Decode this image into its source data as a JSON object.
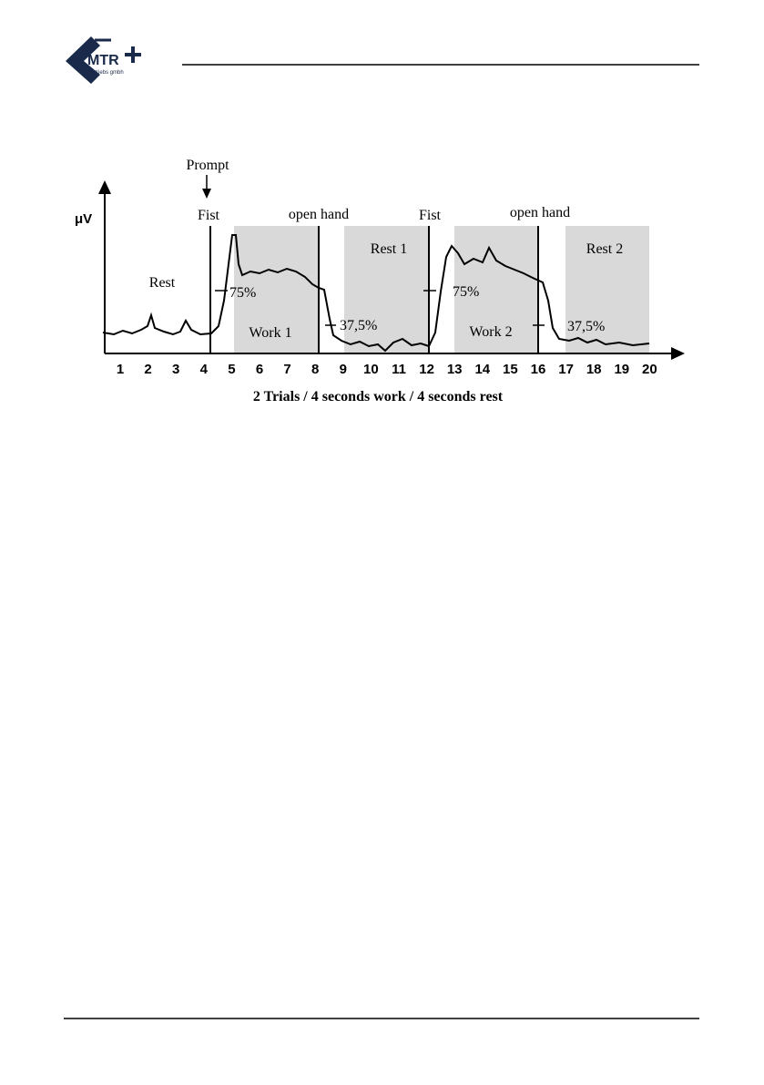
{
  "header": {
    "logo_text": "MTR",
    "logo_subtext": "vertriebs gmbh"
  },
  "figure": {
    "y_axis_label": "μV",
    "prompt": "Prompt",
    "events": [
      "Fist",
      "open hand",
      "Fist",
      "open hand"
    ],
    "phases": [
      "Rest",
      "Work 1",
      "Rest 1",
      "Work 2",
      "Rest 2"
    ],
    "thresholds": [
      "75%",
      "37,5%",
      "75%",
      "37,5%"
    ],
    "x_ticks": [
      "1",
      "2",
      "3",
      "4",
      "5",
      "6",
      "7",
      "8",
      "9",
      "10",
      "11",
      "12",
      "13",
      "14",
      "15",
      "16",
      "17",
      "18",
      "19",
      "20"
    ],
    "caption": "2 Trials / 4 seconds work / 4 seconds rest"
  }
}
